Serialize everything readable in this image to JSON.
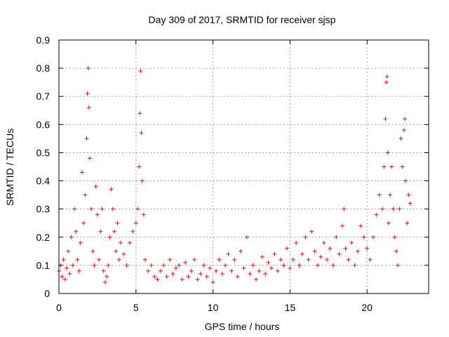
{
  "chart_data": {
    "type": "scatter",
    "title": "Day 309 of 2017, SRMTID for receiver sjsp",
    "xlabel": "GPS time / hours",
    "ylabel": "SRMTID / TECUs",
    "xlim": [
      0,
      24
    ],
    "ylim": [
      0,
      0.9
    ],
    "xticks": [
      0,
      5,
      10,
      15,
      20
    ],
    "yticks": [
      0,
      0.1,
      0.2,
      0.3,
      0.4,
      0.5,
      0.6,
      0.7,
      0.8,
      0.9
    ],
    "grid": true,
    "marker": "+",
    "series_color": "#ff0000",
    "series": [
      {
        "name": "SRMTID",
        "points": [
          [
            0.0,
            0.08
          ],
          [
            0.1,
            0.1
          ],
          [
            0.2,
            0.06
          ],
          [
            0.3,
            0.12
          ],
          [
            0.4,
            0.05
          ],
          [
            0.5,
            0.09
          ],
          [
            0.6,
            0.15
          ],
          [
            0.7,
            0.07
          ],
          [
            0.8,
            0.2
          ],
          [
            0.9,
            0.1
          ],
          [
            1.0,
            0.3
          ],
          [
            1.1,
            0.22
          ],
          [
            1.2,
            0.12
          ],
          [
            1.3,
            0.08
          ],
          [
            1.4,
            0.18
          ],
          [
            1.5,
            0.43
          ],
          [
            1.6,
            0.25
          ],
          [
            1.7,
            0.35
          ],
          [
            1.8,
            0.55
          ],
          [
            1.85,
            0.71
          ],
          [
            1.9,
            0.8
          ],
          [
            1.95,
            0.66
          ],
          [
            2.0,
            0.48
          ],
          [
            2.1,
            0.3
          ],
          [
            2.2,
            0.15
          ],
          [
            2.3,
            0.1
          ],
          [
            2.4,
            0.38
          ],
          [
            2.5,
            0.28
          ],
          [
            2.6,
            0.12
          ],
          [
            2.7,
            0.22
          ],
          [
            2.8,
            0.3
          ],
          [
            2.9,
            0.08
          ],
          [
            3.0,
            0.04
          ],
          [
            3.1,
            0.06
          ],
          [
            3.2,
            0.1
          ],
          [
            3.3,
            0.2
          ],
          [
            3.4,
            0.37
          ],
          [
            3.5,
            0.3
          ],
          [
            3.6,
            0.22
          ],
          [
            3.7,
            0.15
          ],
          [
            3.8,
            0.25
          ],
          [
            3.9,
            0.12
          ],
          [
            4.0,
            0.18
          ],
          [
            4.2,
            0.14
          ],
          [
            4.4,
            0.1
          ],
          [
            4.6,
            0.18
          ],
          [
            4.8,
            0.22
          ],
          [
            5.0,
            0.25
          ],
          [
            5.1,
            0.3
          ],
          [
            5.2,
            0.45
          ],
          [
            5.25,
            0.64
          ],
          [
            5.3,
            0.79
          ],
          [
            5.35,
            0.57
          ],
          [
            5.4,
            0.4
          ],
          [
            5.5,
            0.28
          ],
          [
            5.6,
            0.12
          ],
          [
            5.8,
            0.08
          ],
          [
            6.0,
            0.1
          ],
          [
            6.2,
            0.06
          ],
          [
            6.4,
            0.05
          ],
          [
            6.6,
            0.08
          ],
          [
            6.8,
            0.1
          ],
          [
            7.0,
            0.06
          ],
          [
            7.2,
            0.12
          ],
          [
            7.4,
            0.07
          ],
          [
            7.6,
            0.09
          ],
          [
            7.8,
            0.1
          ],
          [
            8.0,
            0.05
          ],
          [
            8.2,
            0.11
          ],
          [
            8.4,
            0.06
          ],
          [
            8.6,
            0.08
          ],
          [
            8.8,
            0.12
          ],
          [
            9.0,
            0.05
          ],
          [
            9.2,
            0.07
          ],
          [
            9.4,
            0.1
          ],
          [
            9.6,
            0.06
          ],
          [
            9.8,
            0.09
          ],
          [
            10.0,
            0.04
          ],
          [
            10.2,
            0.08
          ],
          [
            10.4,
            0.12
          ],
          [
            10.6,
            0.07
          ],
          [
            10.8,
            0.1
          ],
          [
            11.0,
            0.14
          ],
          [
            11.2,
            0.08
          ],
          [
            11.4,
            0.12
          ],
          [
            11.6,
            0.06
          ],
          [
            11.8,
            0.15
          ],
          [
            12.0,
            0.09
          ],
          [
            12.2,
            0.2
          ],
          [
            12.4,
            0.07
          ],
          [
            12.6,
            0.1
          ],
          [
            12.8,
            0.05
          ],
          [
            13.0,
            0.08
          ],
          [
            13.2,
            0.13
          ],
          [
            13.4,
            0.07
          ],
          [
            13.6,
            0.11
          ],
          [
            13.8,
            0.09
          ],
          [
            14.0,
            0.14
          ],
          [
            14.2,
            0.08
          ],
          [
            14.4,
            0.12
          ],
          [
            14.6,
            0.1
          ],
          [
            14.8,
            0.16
          ],
          [
            15.0,
            0.09
          ],
          [
            15.2,
            0.12
          ],
          [
            15.4,
            0.18
          ],
          [
            15.6,
            0.1
          ],
          [
            15.8,
            0.14
          ],
          [
            16.0,
            0.2
          ],
          [
            16.2,
            0.12
          ],
          [
            16.4,
            0.22
          ],
          [
            16.6,
            0.15
          ],
          [
            16.8,
            0.1
          ],
          [
            17.0,
            0.13
          ],
          [
            17.2,
            0.18
          ],
          [
            17.4,
            0.12
          ],
          [
            17.6,
            0.16
          ],
          [
            17.8,
            0.1
          ],
          [
            18.0,
            0.2
          ],
          [
            18.2,
            0.14
          ],
          [
            18.4,
            0.24
          ],
          [
            18.5,
            0.3
          ],
          [
            18.6,
            0.16
          ],
          [
            18.8,
            0.12
          ],
          [
            19.0,
            0.18
          ],
          [
            19.2,
            0.1
          ],
          [
            19.4,
            0.15
          ],
          [
            19.6,
            0.24
          ],
          [
            19.8,
            0.2
          ],
          [
            20.0,
            0.16
          ],
          [
            20.2,
            0.12
          ],
          [
            20.4,
            0.2
          ],
          [
            20.6,
            0.28
          ],
          [
            20.8,
            0.35
          ],
          [
            21.0,
            0.3
          ],
          [
            21.1,
            0.45
          ],
          [
            21.2,
            0.62
          ],
          [
            21.25,
            0.75
          ],
          [
            21.3,
            0.77
          ],
          [
            21.35,
            0.5
          ],
          [
            21.4,
            0.25
          ],
          [
            21.5,
            0.35
          ],
          [
            21.6,
            0.45
          ],
          [
            21.7,
            0.3
          ],
          [
            21.8,
            0.2
          ],
          [
            21.9,
            0.15
          ],
          [
            22.0,
            0.1
          ],
          [
            22.1,
            0.3
          ],
          [
            22.2,
            0.55
          ],
          [
            22.3,
            0.45
          ],
          [
            22.4,
            0.58
          ],
          [
            22.45,
            0.62
          ],
          [
            22.5,
            0.4
          ],
          [
            22.6,
            0.25
          ],
          [
            22.7,
            0.35
          ],
          [
            22.8,
            0.32
          ]
        ]
      }
    ]
  }
}
